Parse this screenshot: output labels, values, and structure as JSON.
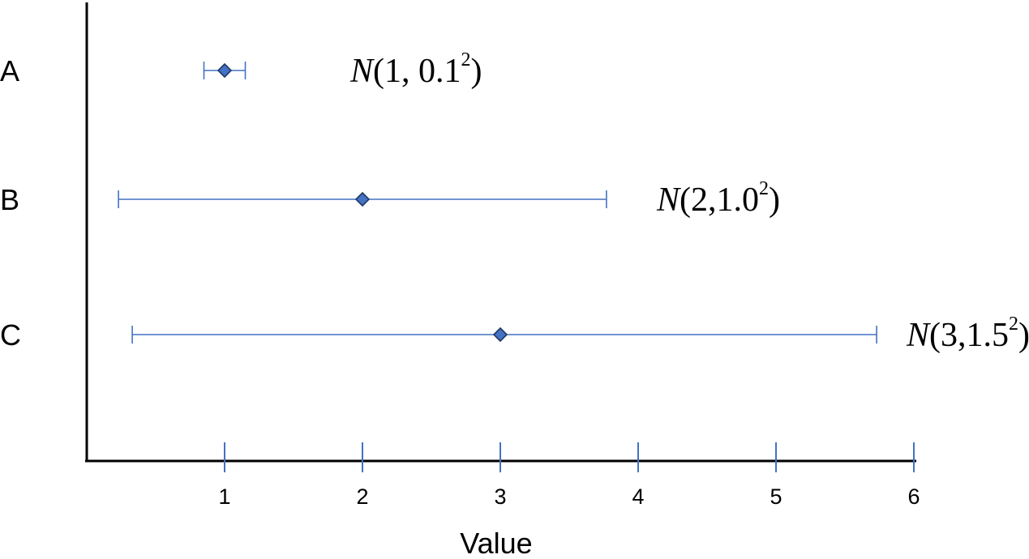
{
  "chart_data": {
    "type": "scatter",
    "xlabel": "Value",
    "xlim": [
      0,
      6
    ],
    "x_ticks": [
      1,
      2,
      3,
      4,
      5,
      6
    ],
    "grid": false,
    "legend": "none",
    "colors": {
      "marker": "#4472c4",
      "marker_edge": "#1f3864",
      "errorbar": "#4472c4",
      "axis": "#000000"
    },
    "series": [
      {
        "category": "A",
        "mean": 1,
        "err_low": 0.85,
        "err_high": 1.15,
        "annotation": {
          "italic": "N",
          "base": "(1, 0.1",
          "sup": "2",
          "close": ")"
        }
      },
      {
        "category": "B",
        "mean": 2,
        "err_low": 0.23,
        "err_high": 3.77,
        "annotation": {
          "italic": "N",
          "base": "(2,1.0",
          "sup": "2",
          "close": ")"
        }
      },
      {
        "category": "C",
        "mean": 3,
        "err_low": 0.33,
        "err_high": 5.73,
        "annotation": {
          "italic": "N",
          "base": "(3,1.5",
          "sup": "2",
          "close": ")"
        }
      }
    ]
  }
}
